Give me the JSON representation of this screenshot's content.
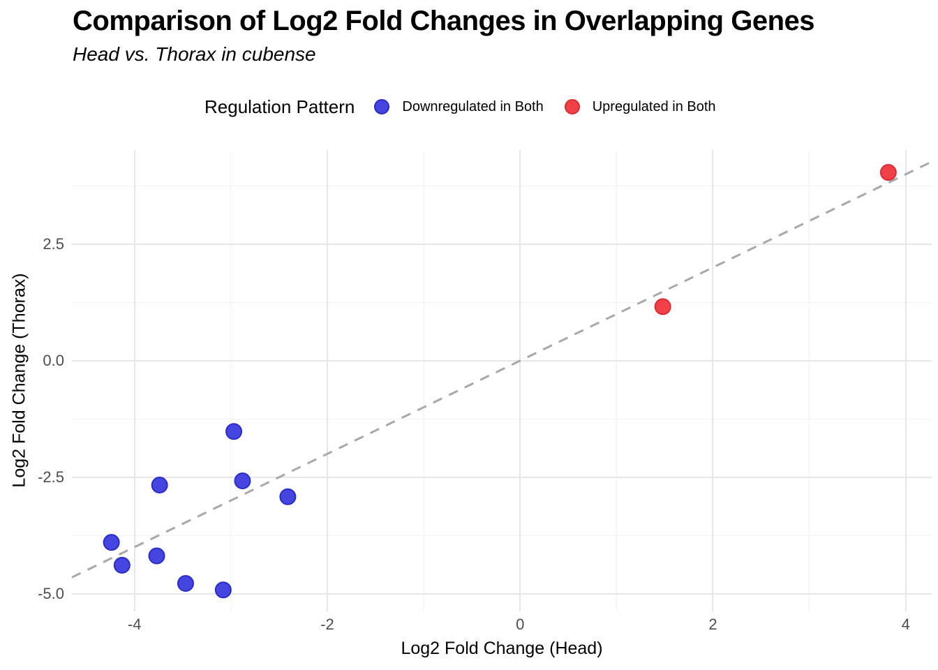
{
  "title": "Comparison of Log2 Fold Changes in Overlapping Genes",
  "subtitle": "Head vs. Thorax in cubense",
  "legend": {
    "title": "Regulation Pattern",
    "items": [
      {
        "label": "Downregulated in Both",
        "fill": "#4545E0",
        "stroke": "#2C2CC4"
      },
      {
        "label": "Upregulated in Both",
        "fill": "#F14148",
        "stroke": "#DB2B35"
      }
    ]
  },
  "chart_data": {
    "type": "scatter",
    "title": "Comparison of Log2 Fold Changes in Overlapping Genes",
    "subtitle": "Head vs. Thorax in cubense",
    "xlabel": "Log2 Fold Change (Head)",
    "ylabel": "Log2 Fold Change (Thorax)",
    "xlim": [
      -4.65,
      4.27
    ],
    "ylim": [
      -5.38,
      4.52
    ],
    "x_major_ticks": [
      -4,
      -2,
      0,
      2,
      4
    ],
    "x_minor_ticks": [
      -3,
      -1,
      1,
      3
    ],
    "y_major_ticks": [
      -5.0,
      -2.5,
      0.0,
      2.5
    ],
    "y_minor_ticks": [
      -3.75,
      -1.25,
      1.25,
      3.75
    ],
    "x_tick_labels": [
      "-4",
      "-2",
      "0",
      "2",
      "4"
    ],
    "y_tick_labels": [
      "-5.0",
      "-2.5",
      "0.0",
      "2.5"
    ],
    "grid": true,
    "legend_position": "top",
    "reference_line": {
      "slope": 1,
      "intercept": 0,
      "style": "dashed",
      "color": "#A8A8A8",
      "width": 3,
      "dash": "14 11"
    },
    "series": [
      {
        "name": "Downregulated in Both",
        "fill": "#4545E0",
        "stroke": "#2C2CC4",
        "points": [
          [
            -2.97,
            -1.52
          ],
          [
            -3.74,
            -2.67
          ],
          [
            -2.88,
            -2.58
          ],
          [
            -2.41,
            -2.92
          ],
          [
            -4.24,
            -3.9
          ],
          [
            -3.77,
            -4.19
          ],
          [
            -4.13,
            -4.39
          ],
          [
            -3.47,
            -4.78
          ],
          [
            -3.08,
            -4.92
          ]
        ]
      },
      {
        "name": "Upregulated in Both",
        "fill": "#F14148",
        "stroke": "#DB2B35",
        "points": [
          [
            1.48,
            1.16
          ],
          [
            3.82,
            4.04
          ]
        ]
      }
    ],
    "point_radius": 11,
    "colors": {
      "tick_label": "#4d4d4d",
      "grid_major": "#e6e6e6",
      "grid_minor": "#f2f2f2"
    }
  }
}
